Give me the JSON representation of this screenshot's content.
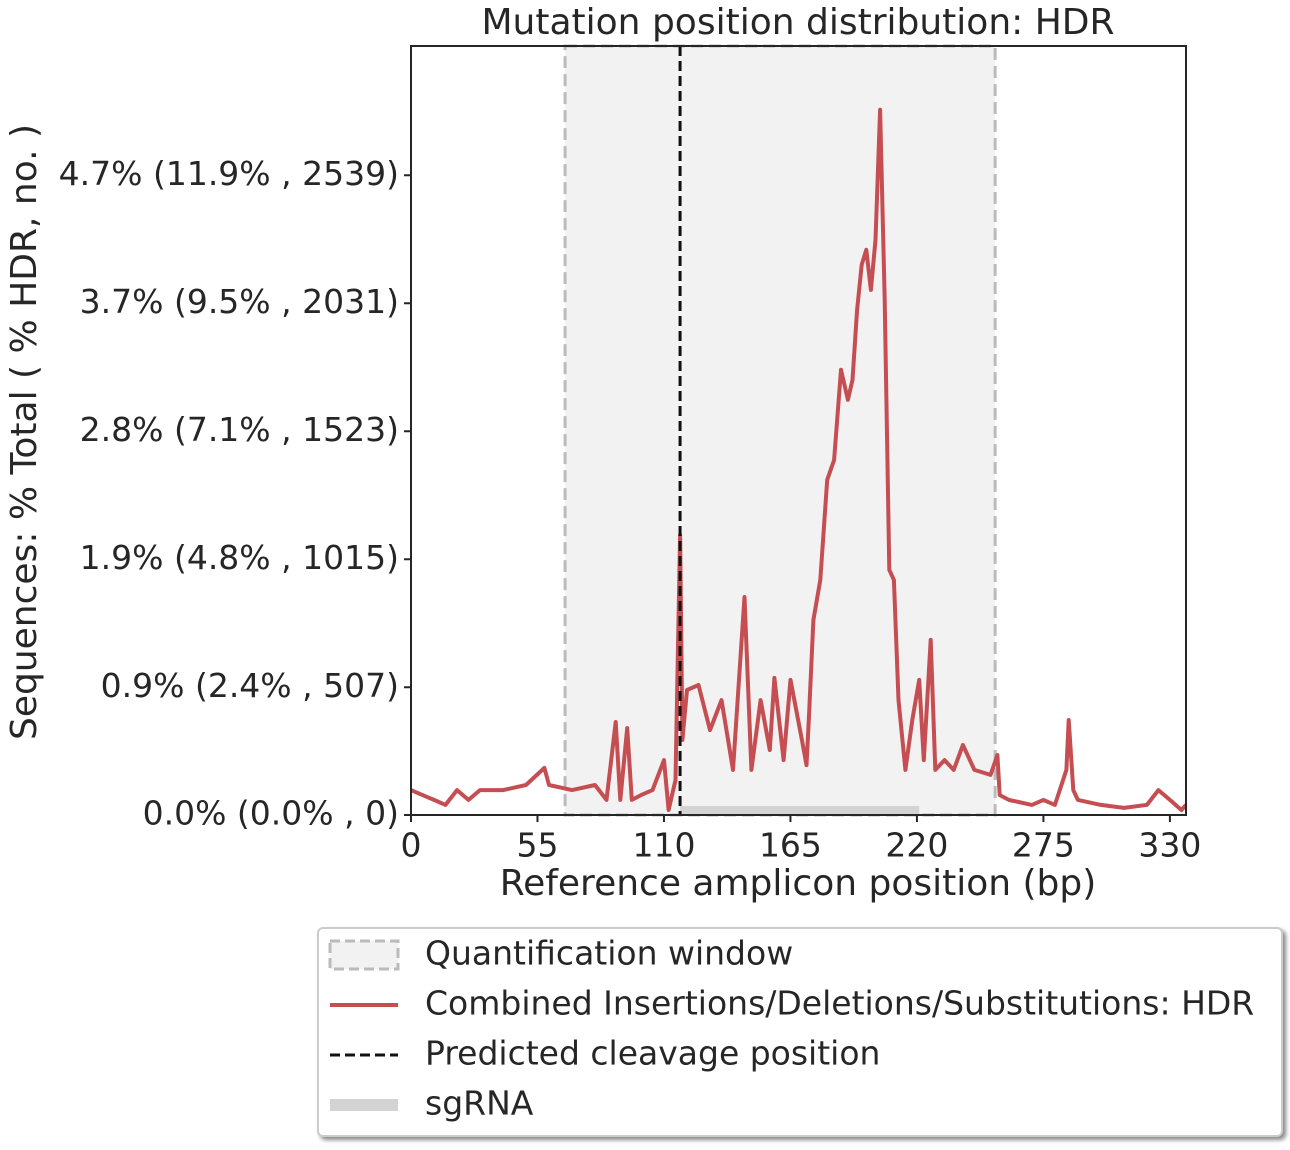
{
  "chart_data": {
    "type": "line",
    "title": "Mutation position distribution: HDR",
    "x_label": "Reference amplicon position (bp)",
    "y_label": "Sequences: % Total ( % HDR, no. )",
    "xlim": [
      0,
      337
    ],
    "xticks": [
      0,
      55,
      110,
      165,
      220,
      275,
      330
    ],
    "ylim": [
      0,
      3052
    ],
    "yticks": [
      {
        "value": 0,
        "label": "0.0% (0.0% , 0)"
      },
      {
        "value": 507,
        "label": "0.9% (2.4% , 507)"
      },
      {
        "value": 1015,
        "label": "1.9% (4.8% , 1015)"
      },
      {
        "value": 1523,
        "label": "2.8% (7.1% , 1523)"
      },
      {
        "value": 2031,
        "label": "3.7% (9.5% , 2031)"
      },
      {
        "value": 2539,
        "label": "4.7% (11.9% , 2539)"
      }
    ],
    "series": [
      {
        "name": "Combined Insertions/Deletions/Substitutions: HDR",
        "color": "#c44e52",
        "x": [
          0,
          5,
          10,
          15,
          20,
          25,
          30,
          40,
          50,
          58,
          60,
          70,
          80,
          85,
          89,
          91,
          94,
          96,
          100,
          105,
          110,
          112,
          115,
          117,
          118,
          120,
          125,
          130,
          135,
          140,
          145,
          148,
          152,
          156,
          158,
          162,
          165,
          170,
          172,
          173,
          175,
          178,
          181,
          184,
          187,
          190,
          192,
          194,
          196,
          198,
          200,
          202,
          204,
          206,
          208,
          210,
          212,
          215,
          218,
          221,
          223,
          226,
          228,
          232,
          236,
          240,
          245,
          252,
          255,
          256,
          260,
          270,
          275,
          280,
          285,
          286,
          288,
          290,
          300,
          310,
          320,
          325,
          330,
          335,
          337
        ],
        "values": [
          99,
          79,
          60,
          40,
          99,
          60,
          99,
          99,
          119,
          187,
          119,
          99,
          119,
          60,
          369,
          60,
          345,
          60,
          79,
          99,
          218,
          20,
          139,
          1112,
          298,
          496,
          516,
          337,
          456,
          179,
          865,
          179,
          456,
          258,
          544,
          218,
          536,
          298,
          198,
          377,
          774,
          933,
          1330,
          1409,
          1767,
          1648,
          1727,
          2005,
          2184,
          2243,
          2084,
          2283,
          2799,
          2045,
          973,
          933,
          456,
          179,
          377,
          536,
          218,
          695,
          179,
          218,
          179,
          278,
          179,
          159,
          238,
          79,
          60,
          40,
          60,
          40,
          179,
          377,
          99,
          60,
          40,
          28,
          40,
          99,
          60,
          20,
          40
        ]
      }
    ],
    "quantification_window": {
      "label": "Quantification window",
      "range": [
        67,
        254
      ]
    },
    "cleavage": {
      "label": "Predicted cleavage position",
      "x": 117
    },
    "sgrna": {
      "label": "sgRNA",
      "range": [
        117,
        221
      ]
    }
  }
}
